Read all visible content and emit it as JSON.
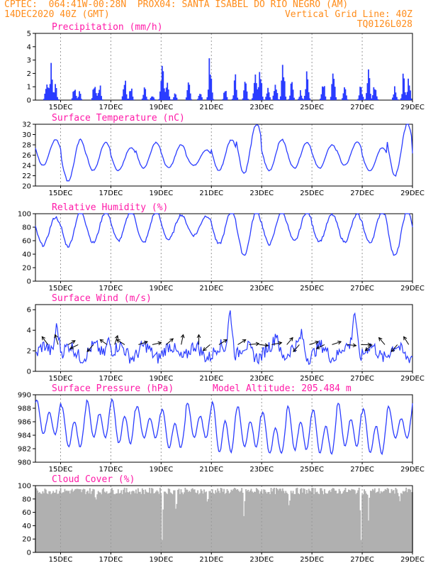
{
  "header": {
    "line1_left": "CPTEC:  064:41W-00:28N  PROX04: SANTA ISABEL DO RIO NEGRO (AM)",
    "line2_left": "14DEC2020 40Z (GMT)",
    "line2_right": "Vertical Grid Line: 40Z",
    "line3_right": "TQ0126L028"
  },
  "colors": {
    "header": "#ff8c1a",
    "title": "#ff1aa8",
    "line": "#2a3cff",
    "bar": "#2a3cff",
    "cloud": "#b0b0b0",
    "arrow": "#000000"
  },
  "x_axis": {
    "start_day": 14.0,
    "end_day": 29.0,
    "tick_labels": [
      "15DEC",
      "17DEC",
      "19DEC",
      "21DEC",
      "23DEC",
      "25DEC",
      "27DEC",
      "29DEC"
    ],
    "tick_days": [
      15,
      17,
      19,
      21,
      23,
      25,
      27,
      29
    ]
  },
  "chart_data": [
    {
      "type": "bar",
      "title": "Precipitation (mm/h)",
      "ylim": [
        0,
        5
      ],
      "yticks": [
        0,
        1,
        2,
        3,
        4,
        5
      ],
      "events": [
        {
          "day": 14.45,
          "amp": 1.7
        },
        {
          "day": 14.62,
          "amp": 2.6
        },
        {
          "day": 14.8,
          "amp": 1.2
        },
        {
          "day": 15.55,
          "amp": 1.1
        },
        {
          "day": 15.75,
          "amp": 0.6
        },
        {
          "day": 16.35,
          "amp": 1.4
        },
        {
          "day": 16.55,
          "amp": 1.2
        },
        {
          "day": 17.55,
          "amp": 1.8
        },
        {
          "day": 17.8,
          "amp": 1.0
        },
        {
          "day": 18.35,
          "amp": 1.0
        },
        {
          "day": 18.65,
          "amp": 0.5
        },
        {
          "day": 19.05,
          "amp": 3.2
        },
        {
          "day": 19.25,
          "amp": 1.6
        },
        {
          "day": 19.55,
          "amp": 0.5
        },
        {
          "day": 20.1,
          "amp": 1.4
        },
        {
          "day": 20.55,
          "amp": 0.7
        },
        {
          "day": 20.95,
          "amp": 3.5
        },
        {
          "day": 21.55,
          "amp": 0.8
        },
        {
          "day": 21.95,
          "amp": 1.8
        },
        {
          "day": 22.35,
          "amp": 1.5
        },
        {
          "day": 22.75,
          "amp": 3.2
        },
        {
          "day": 22.95,
          "amp": 2.5
        },
        {
          "day": 23.25,
          "amp": 1.2
        },
        {
          "day": 23.55,
          "amp": 1.8
        },
        {
          "day": 23.85,
          "amp": 3.5
        },
        {
          "day": 24.2,
          "amp": 1.4
        },
        {
          "day": 24.55,
          "amp": 0.7
        },
        {
          "day": 24.8,
          "amp": 2.4
        },
        {
          "day": 25.45,
          "amp": 1.6
        },
        {
          "day": 25.85,
          "amp": 2.2
        },
        {
          "day": 26.3,
          "amp": 1.0
        },
        {
          "day": 26.95,
          "amp": 1.2
        },
        {
          "day": 27.25,
          "amp": 2.3
        },
        {
          "day": 27.5,
          "amp": 1.4
        },
        {
          "day": 28.3,
          "amp": 1.1
        },
        {
          "day": 28.65,
          "amp": 2.0
        },
        {
          "day": 28.85,
          "amp": 1.8
        }
      ]
    },
    {
      "type": "line",
      "title": "Surface Temperature (nC)",
      "ylim": [
        20,
        32
      ],
      "yticks": [
        20,
        22,
        24,
        26,
        28,
        30,
        32
      ],
      "min_values": [
        24,
        21,
        23,
        23,
        23.5,
        23.5,
        24,
        23,
        22.5,
        23,
        23.5,
        23.5,
        24,
        23,
        22,
        23
      ],
      "max_values": [
        29,
        29,
        28.5,
        27.5,
        28.5,
        28,
        27,
        29,
        32,
        29,
        28.5,
        28,
        28.5,
        27.5,
        32,
        28
      ]
    },
    {
      "type": "line",
      "title": "Relative Humidity (%)",
      "ylim": [
        0,
        100
      ],
      "yticks": [
        0,
        20,
        40,
        60,
        80,
        100
      ],
      "min_values": [
        56,
        55,
        60,
        63,
        60,
        64,
        70,
        58,
        43,
        58,
        62,
        62,
        61,
        60,
        42,
        55
      ],
      "max_values": [
        92,
        100,
        100,
        100,
        100,
        96,
        95,
        100,
        100,
        100,
        100,
        96,
        96,
        100,
        100,
        90
      ]
    },
    {
      "type": "line",
      "title": "Surface Wind (m/s)",
      "ylim": [
        0,
        6.5
      ],
      "yticks": [
        0,
        2,
        4,
        6
      ],
      "peaks": [
        {
          "day": 14.85,
          "amp": 3.0
        },
        {
          "day": 21.75,
          "amp": 4.3
        },
        {
          "day": 26.7,
          "amp": 4.2
        },
        {
          "day": 23.6,
          "amp": 1.8
        },
        {
          "day": 16.9,
          "amp": 1.6
        },
        {
          "day": 24.6,
          "amp": 1.6
        }
      ],
      "arrows": [
        {
          "day": 14.5,
          "u": -0.6,
          "v": 0.8
        },
        {
          "day": 14.9,
          "u": -0.3,
          "v": 1.0
        },
        {
          "day": 15.3,
          "u": 0.7,
          "v": 0.4
        },
        {
          "day": 15.7,
          "u": -0.8,
          "v": -0.4
        },
        {
          "day": 16.3,
          "u": -0.6,
          "v": -0.7
        },
        {
          "day": 16.85,
          "u": -0.7,
          "v": 0.5
        },
        {
          "day": 17.15,
          "u": 0.3,
          "v": 0.9
        },
        {
          "day": 17.55,
          "u": -0.8,
          "v": 0.5
        },
        {
          "day": 18.1,
          "u": 0.9,
          "v": 0.3
        },
        {
          "day": 18.65,
          "u": 0.9,
          "v": 0.2
        },
        {
          "day": 19.2,
          "u": 0.7,
          "v": 0.6
        },
        {
          "day": 19.8,
          "u": 0.2,
          "v": 1.0
        },
        {
          "day": 20.5,
          "u": 0.0,
          "v": 1.0
        },
        {
          "day": 20.95,
          "u": -0.7,
          "v": -0.6
        },
        {
          "day": 21.3,
          "u": 0.8,
          "v": 0.5
        },
        {
          "day": 22.05,
          "u": 0.8,
          "v": 0.5
        },
        {
          "day": 22.5,
          "u": 1.0,
          "v": 0.1
        },
        {
          "day": 22.9,
          "u": 0.9,
          "v": -0.1
        },
        {
          "day": 23.4,
          "u": 1.0,
          "v": 0.2
        },
        {
          "day": 24.0,
          "u": 0.6,
          "v": 0.7
        },
        {
          "day": 24.5,
          "u": -0.6,
          "v": -0.7
        },
        {
          "day": 24.9,
          "u": 0.9,
          "v": 0.3
        },
        {
          "day": 25.5,
          "u": -0.8,
          "v": -0.4
        },
        {
          "day": 25.8,
          "u": 0.9,
          "v": 0.3
        },
        {
          "day": 26.4,
          "u": 0.9,
          "v": -0.1
        },
        {
          "day": 26.95,
          "u": 1.0,
          "v": 0.0
        },
        {
          "day": 27.4,
          "u": -0.7,
          "v": -0.6
        },
        {
          "day": 27.9,
          "u": -0.6,
          "v": 0.7
        },
        {
          "day": 28.4,
          "u": -0.6,
          "v": -0.7
        },
        {
          "day": 28.85,
          "u": -0.5,
          "v": 0.8
        }
      ]
    },
    {
      "type": "line",
      "title": "Surface Pressure (hPa)",
      "subtitle": "Model Altitude: 205.484 m",
      "ylim": [
        980,
        990
      ],
      "yticks": [
        980,
        982,
        984,
        986,
        988,
        990
      ],
      "daily_max": [
        989,
        988,
        989,
        989,
        988,
        987.5,
        988.5,
        988.5,
        988,
        987,
        988,
        987.5,
        988.5,
        987.5,
        988,
        989
      ],
      "daily_min": [
        983.5,
        981.5,
        983,
        982,
        983,
        981.5,
        983,
        980.5,
        981.5,
        980.5,
        981,
        980.5,
        981.5,
        980.5,
        983,
        984
      ],
      "semi_amp": 1.3
    },
    {
      "type": "bar",
      "title": "Cloud Cover (%)",
      "ylim": [
        0,
        100
      ],
      "yticks": [
        0,
        20,
        40,
        60,
        80,
        100
      ],
      "dips": [
        {
          "day": 16.4,
          "depth": 0.2
        },
        {
          "day": 19.05,
          "depth": 0.95
        },
        {
          "day": 19.6,
          "depth": 0.4
        },
        {
          "day": 20.85,
          "depth": 0.3
        },
        {
          "day": 22.3,
          "depth": 0.5
        },
        {
          "day": 24.1,
          "depth": 0.3
        },
        {
          "day": 26.95,
          "depth": 0.95
        },
        {
          "day": 27.25,
          "depth": 0.5
        },
        {
          "day": 28.5,
          "depth": 0.2
        }
      ]
    }
  ]
}
